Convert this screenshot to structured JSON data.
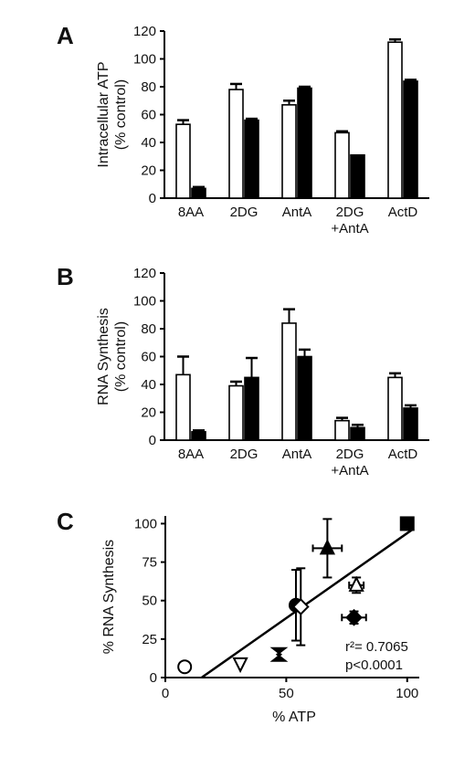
{
  "chart_data": [
    {
      "panel": "A",
      "type": "bar",
      "ylabel": [
        "Intracellular ATP",
        "(% control)"
      ],
      "ylim": [
        0,
        120
      ],
      "yticks": [
        "0",
        "20",
        "40",
        "60",
        "80",
        "100",
        "120"
      ],
      "categories": [
        [
          "8AA"
        ],
        [
          "2DG"
        ],
        [
          "AntA"
        ],
        [
          "2DG",
          "+AntA"
        ],
        [
          "ActD"
        ]
      ],
      "series": [
        {
          "fill": "#ffffff",
          "values": [
            53,
            78,
            67,
            47,
            112
          ],
          "errors": [
            3,
            4,
            3,
            1,
            2
          ]
        },
        {
          "fill": "#000000",
          "values": [
            7,
            56,
            79,
            31,
            84
          ],
          "errors": [
            1,
            1,
            1,
            0,
            1
          ]
        }
      ]
    },
    {
      "panel": "B",
      "type": "bar",
      "ylabel": [
        "RNA Synthesis",
        "(% control)"
      ],
      "ylim": [
        0,
        120
      ],
      "yticks": [
        "0",
        "20",
        "40",
        "60",
        "80",
        "100",
        "120"
      ],
      "categories": [
        [
          "8AA"
        ],
        [
          "2DG"
        ],
        [
          "AntA"
        ],
        [
          "2DG",
          "+AntA"
        ],
        [
          "ActD"
        ]
      ],
      "series": [
        {
          "fill": "#ffffff",
          "values": [
            47,
            39,
            84,
            14,
            45
          ],
          "errors": [
            13,
            3,
            10,
            2,
            3
          ]
        },
        {
          "fill": "#000000",
          "values": [
            6,
            45,
            60,
            9,
            23
          ],
          "errors": [
            1,
            14,
            5,
            2,
            2
          ]
        }
      ]
    },
    {
      "panel": "C",
      "type": "scatter",
      "xlabel": "% ATP",
      "ylabel": "% RNA Synthesis",
      "xlim": [
        0,
        105
      ],
      "ylim": [
        0,
        105
      ],
      "xticks": [
        "0",
        "50",
        "100"
      ],
      "yticks": [
        "0",
        "25",
        "50",
        "75",
        "100"
      ],
      "annotations": [
        "r²= 0.7065",
        "p<0.0001"
      ],
      "points": [
        {
          "x": 100,
          "y": 100,
          "marker": "square",
          "filled": true
        },
        {
          "x": 67,
          "y": 84,
          "xerr": 6,
          "yerr": 19,
          "marker": "triangle-up",
          "filled": true
        },
        {
          "x": 79,
          "y": 60,
          "xerr": 3,
          "yerr": 5,
          "marker": "triangle-up",
          "filled": false
        },
        {
          "x": 78,
          "y": 39,
          "xerr": 5,
          "yerr": 4,
          "marker": "diamond",
          "filled": true
        },
        {
          "x": 54,
          "y": 47,
          "yerr": 23,
          "marker": "circle",
          "filled": true
        },
        {
          "x": 56,
          "y": 46,
          "yerr": 25,
          "marker": "diamond",
          "filled": false
        },
        {
          "x": 47,
          "y": 15,
          "marker": "hourglass",
          "filled": true
        },
        {
          "x": 31,
          "y": 9,
          "marker": "triangle-down",
          "filled": false
        },
        {
          "x": 8,
          "y": 7,
          "marker": "circle",
          "filled": false
        }
      ],
      "fit": {
        "x": [
          15,
          102
        ],
        "y": [
          0,
          96
        ]
      }
    }
  ]
}
